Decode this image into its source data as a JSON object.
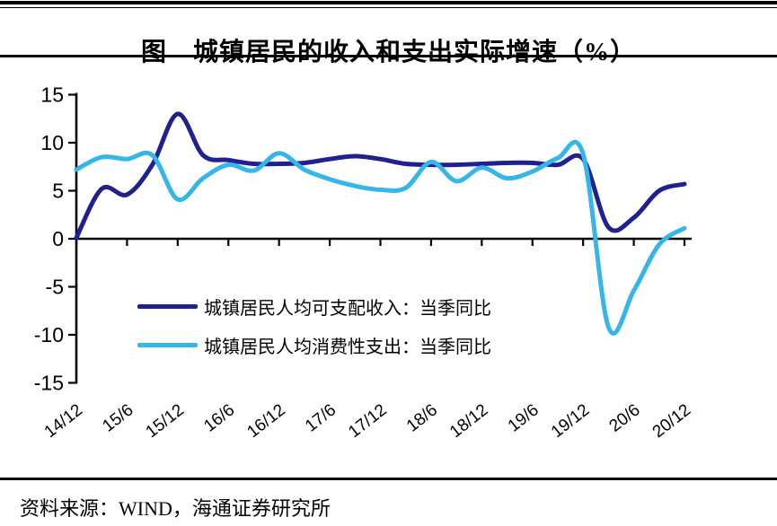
{
  "header": {
    "title": "图　城镇居民的收入和支出实际增速（%）"
  },
  "chart_data": {
    "type": "line",
    "x": [
      "14/12",
      "15/3",
      "15/6",
      "15/9",
      "15/12",
      "16/3",
      "16/6",
      "16/9",
      "16/12",
      "17/3",
      "17/6",
      "17/9",
      "17/12",
      "18/3",
      "18/6",
      "18/9",
      "18/12",
      "19/3",
      "19/6",
      "19/9",
      "19/12",
      "20/3",
      "20/6",
      "20/9",
      "20/12"
    ],
    "x_axis_labels": [
      "14/12",
      "15/6",
      "15/12",
      "16/6",
      "16/12",
      "17/6",
      "17/12",
      "18/6",
      "18/12",
      "19/6",
      "19/12",
      "20/6",
      "20/12"
    ],
    "series": [
      {
        "name": "城镇居民人均可支配收入：当季同比",
        "color": "#21208f",
        "values": [
          0.1,
          5.2,
          4.6,
          7.7,
          13.0,
          8.7,
          8.2,
          7.8,
          7.8,
          7.9,
          8.3,
          8.6,
          8.3,
          7.8,
          7.7,
          7.7,
          7.8,
          7.9,
          7.9,
          7.7,
          8.3,
          1.2,
          2.2,
          5.0,
          5.7
        ]
      },
      {
        "name": "城镇居民人均消费性支出：当季同比",
        "color": "#35b6e9",
        "values": [
          7.2,
          8.5,
          8.3,
          8.7,
          4.1,
          6.3,
          7.7,
          7.1,
          8.9,
          7.2,
          6.2,
          5.5,
          5.1,
          5.3,
          8.0,
          6.0,
          7.4,
          6.3,
          7.0,
          8.4,
          8.8,
          -9.2,
          -5.4,
          -0.6,
          1.1
        ]
      }
    ],
    "yticks": [
      15,
      10,
      5,
      0,
      -5,
      -10,
      -15
    ],
    "ylim": [
      -15,
      15
    ],
    "grid": false,
    "legend_position": "inside-lower-left",
    "axis_color": "#000000"
  },
  "footer": {
    "source": "资料来源：WIND，海通证券研究所"
  }
}
